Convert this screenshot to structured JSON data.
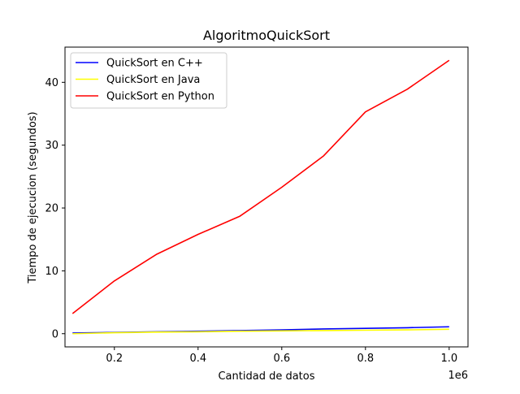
{
  "chart_data": {
    "type": "line",
    "title": "AlgoritmoQuickSort",
    "xlabel": "Cantidad de datos",
    "ylabel": "Tiempo de ejecucion (segundos)",
    "x_offset_label": "1e6",
    "x": [
      100000,
      200000,
      300000,
      400000,
      500000,
      600000,
      700000,
      800000,
      900000,
      1000000
    ],
    "xlim": [
      82000,
      1045000
    ],
    "ylim": [
      -2.1,
      45.6
    ],
    "x_ticks": [
      200000,
      400000,
      600000,
      800000,
      1000000
    ],
    "x_tick_labels": [
      "0.2",
      "0.4",
      "0.6",
      "0.8",
      "1.0"
    ],
    "y_ticks": [
      0,
      10,
      20,
      30,
      40
    ],
    "y_tick_labels": [
      "0",
      "10",
      "20",
      "30",
      "40"
    ],
    "grid": false,
    "legend_position": "top-left",
    "series": [
      {
        "name": "QuickSort en C++",
        "color": "#0000ff",
        "values": [
          0.1,
          0.2,
          0.3,
          0.4,
          0.5,
          0.6,
          0.75,
          0.85,
          0.95,
          1.1
        ]
      },
      {
        "name": "QuickSort en Java",
        "color": "#ffff00",
        "values": [
          0.0,
          0.15,
          0.25,
          0.3,
          0.4,
          0.45,
          0.5,
          0.55,
          0.6,
          0.7
        ]
      },
      {
        "name": "QuickSort en Python",
        "color": "#ff0000",
        "values": [
          3.2,
          8.4,
          12.6,
          15.8,
          18.7,
          23.3,
          28.3,
          35.3,
          38.9,
          43.5
        ]
      }
    ]
  }
}
